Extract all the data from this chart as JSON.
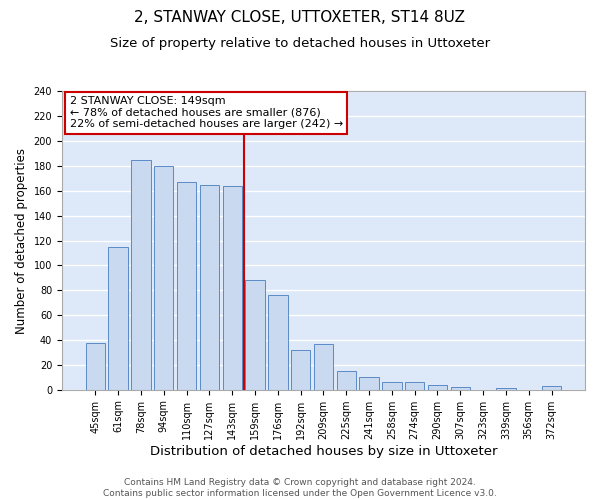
{
  "title": "2, STANWAY CLOSE, UTTOXETER, ST14 8UZ",
  "subtitle": "Size of property relative to detached houses in Uttoxeter",
  "xlabel": "Distribution of detached houses by size in Uttoxeter",
  "ylabel": "Number of detached properties",
  "bar_labels": [
    "45sqm",
    "61sqm",
    "78sqm",
    "94sqm",
    "110sqm",
    "127sqm",
    "143sqm",
    "159sqm",
    "176sqm",
    "192sqm",
    "209sqm",
    "225sqm",
    "241sqm",
    "258sqm",
    "274sqm",
    "290sqm",
    "307sqm",
    "323sqm",
    "339sqm",
    "356sqm",
    "372sqm"
  ],
  "bar_values": [
    38,
    115,
    185,
    180,
    167,
    165,
    164,
    88,
    76,
    32,
    37,
    15,
    10,
    6,
    6,
    4,
    2,
    0,
    1,
    0,
    3
  ],
  "bar_color": "#c9d9f0",
  "bar_edgecolor": "#5a8ac6",
  "background_color": "#dde8f8",
  "grid_color": "#ffffff",
  "vline_color": "#cc0000",
  "annotation_title": "2 STANWAY CLOSE: 149sqm",
  "annotation_line1": "← 78% of detached houses are smaller (876)",
  "annotation_line2": "22% of semi-detached houses are larger (242) →",
  "annotation_box_edgecolor": "#cc0000",
  "ylim": [
    0,
    240
  ],
  "yticks": [
    0,
    20,
    40,
    60,
    80,
    100,
    120,
    140,
    160,
    180,
    200,
    220,
    240
  ],
  "footer_line1": "Contains HM Land Registry data © Crown copyright and database right 2024.",
  "footer_line2": "Contains public sector information licensed under the Open Government Licence v3.0.",
  "title_fontsize": 11,
  "subtitle_fontsize": 9.5,
  "xlabel_fontsize": 9.5,
  "ylabel_fontsize": 8.5,
  "tick_fontsize": 7,
  "annotation_fontsize": 8,
  "footer_fontsize": 6.5
}
